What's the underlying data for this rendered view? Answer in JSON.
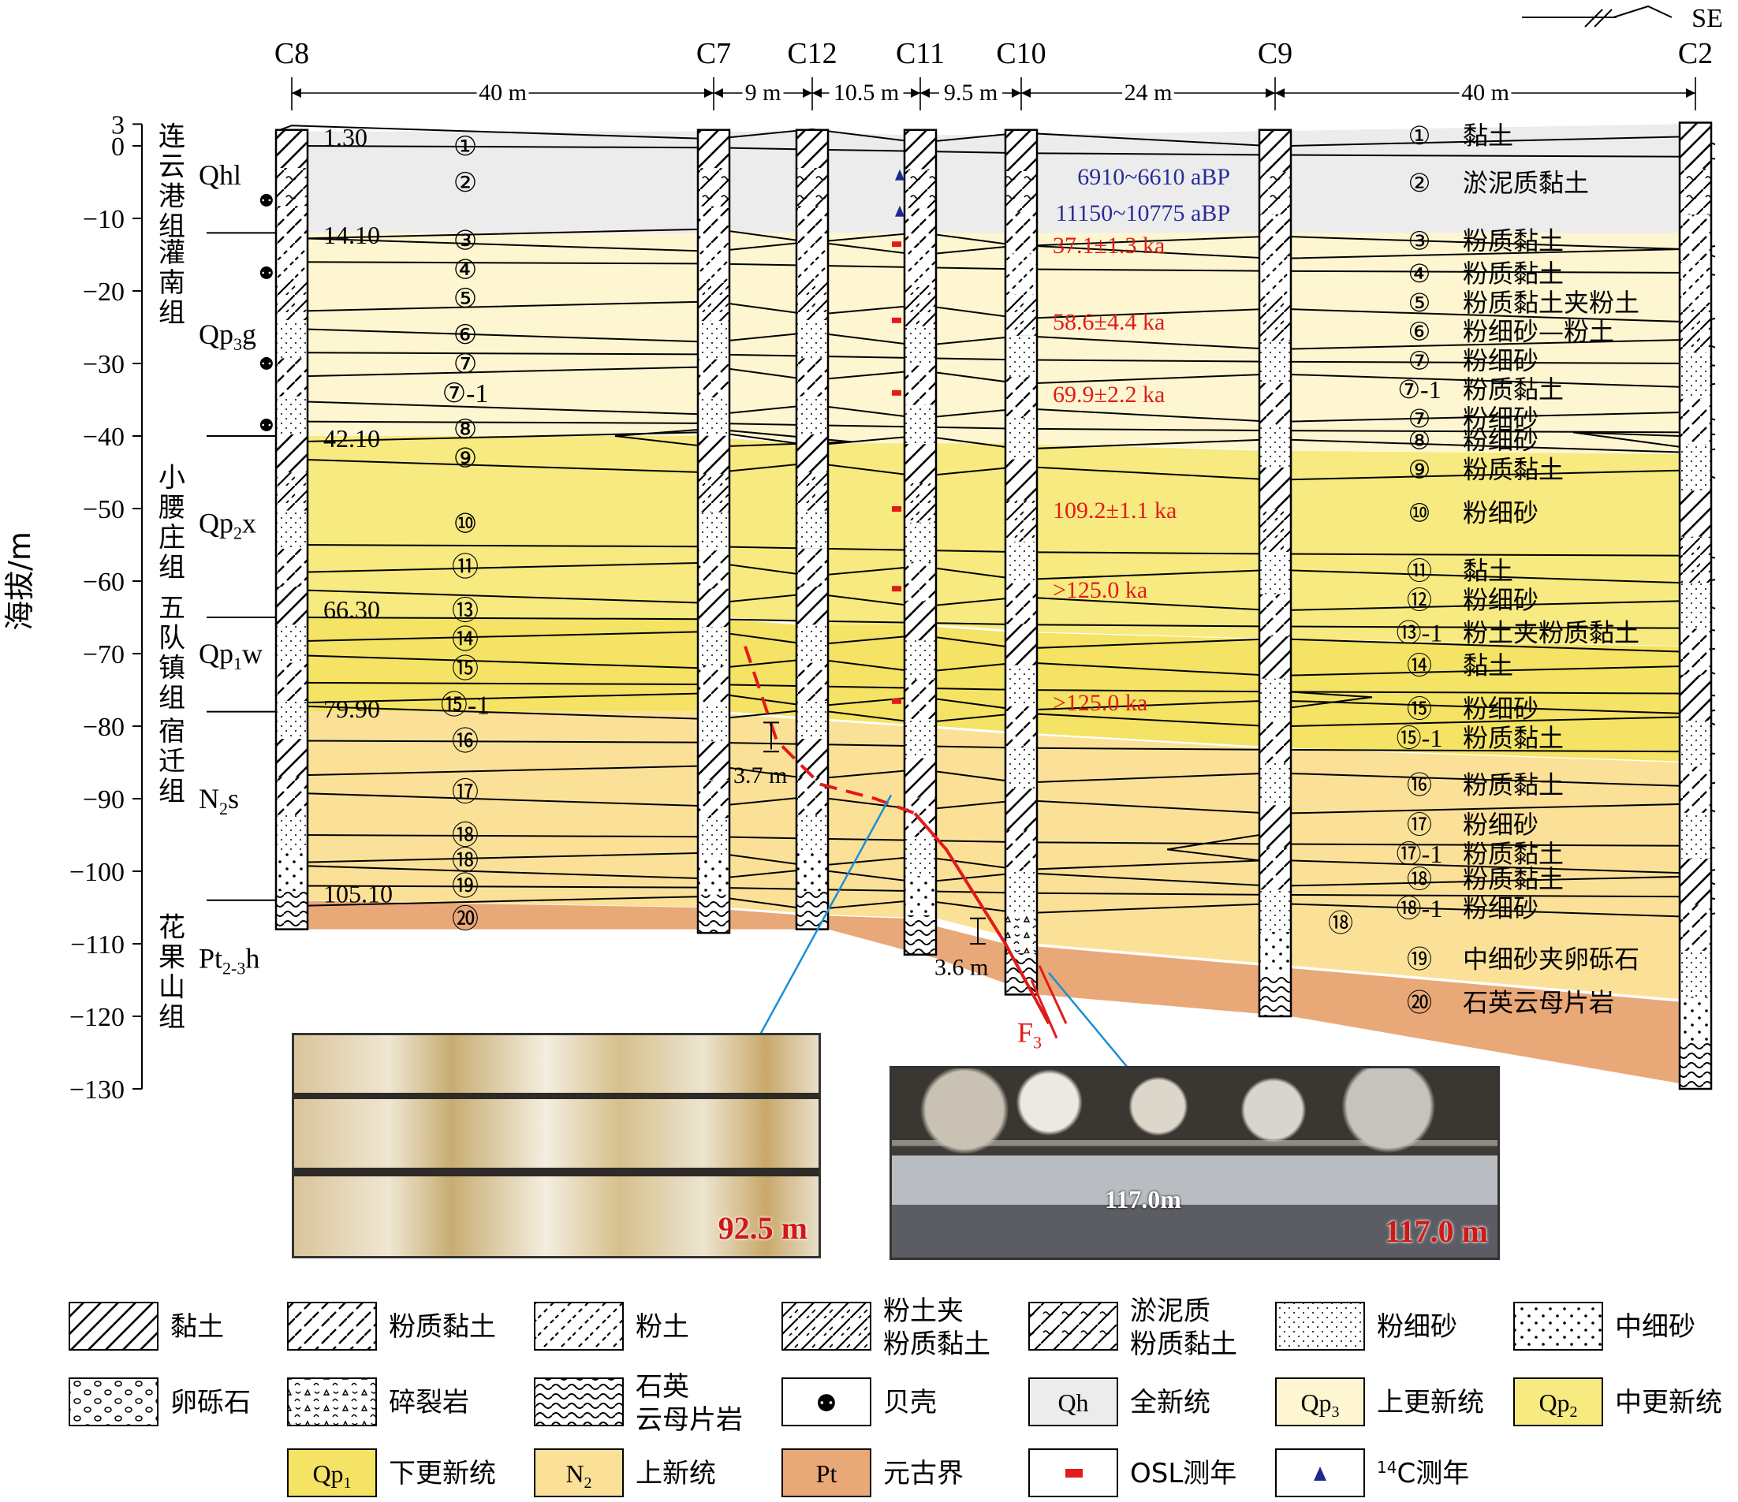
{
  "orientation": {
    "label": "SE"
  },
  "boreholes": [
    "C8",
    "C7",
    "C12",
    "C11",
    "C10",
    "C9",
    "C2"
  ],
  "spacings": [
    "40 m",
    "9 m",
    "10.5 m",
    "9.5 m",
    "24 m",
    "40 m"
  ],
  "yaxis": {
    "label": "海拔/m",
    "ticks": [
      3,
      0,
      -10,
      -20,
      -30,
      -40,
      -50,
      -60,
      -70,
      -80,
      -90,
      -100,
      -110,
      -120,
      -130
    ],
    "tick_labels": [
      "3",
      "0",
      "−10",
      "−20",
      "−30",
      "−40",
      "−50",
      "−60",
      "−70",
      "−80",
      "−90",
      "−100",
      "−110",
      "−120",
      "−130"
    ]
  },
  "formations": [
    {
      "name_lines": [
        "连",
        "云",
        "港",
        "组"
      ],
      "code": "Qhl",
      "age": "Qh"
    },
    {
      "name_lines": [
        "灌",
        "南",
        "组"
      ],
      "code": "Qp3g",
      "code_html_main": "Qp",
      "code_sub": "3",
      "code_tail": "g",
      "age": "Qp3"
    },
    {
      "name_lines": [
        "小",
        "腰",
        "庄",
        "组"
      ],
      "code": "Qp2x",
      "code_html_main": "Qp",
      "code_sub": "2",
      "code_tail": "x",
      "age": "Qp2"
    },
    {
      "name_lines": [
        "五",
        "队",
        "镇",
        "组"
      ],
      "code": "Qp1w",
      "code_html_main": "Qp",
      "code_sub": "1",
      "code_tail": "w",
      "age": "Qp1"
    },
    {
      "name_lines": [
        "宿",
        "迁",
        "组"
      ],
      "code": "N2s",
      "code_html_main": "N",
      "code_sub": "2",
      "code_tail": "s",
      "age": "N2"
    },
    {
      "name_lines": [
        "花",
        "果",
        "山",
        "组"
      ],
      "code": "Pt2-3h",
      "code_html_main": "Pt",
      "code_sub": "2-3",
      "code_tail": "h",
      "age": "Pt"
    }
  ],
  "boundary_depths": [
    "1.30",
    "14.10",
    "42.10",
    "66.30",
    "79.90",
    "105.10"
  ],
  "c8_layers": [
    "①",
    "②",
    "③",
    "④",
    "⑤",
    "⑥",
    "⑦",
    "⑦-1",
    "⑧",
    "⑨",
    "⑩",
    "⑪",
    "⑬",
    "⑭",
    "⑮",
    "⑮-1",
    "⑯",
    "⑰",
    "⑱",
    "⑱",
    "⑲",
    "⑳"
  ],
  "right_layers": [
    {
      "num": "①",
      "name": "黏土"
    },
    {
      "num": "②",
      "name": "淤泥质黏土"
    },
    {
      "num": "③",
      "name": "粉质黏土"
    },
    {
      "num": "④",
      "name": "粉质黏土"
    },
    {
      "num": "⑤",
      "name": "粉质黏土夹粉土"
    },
    {
      "num": "⑥",
      "name": "粉细砂—粉土"
    },
    {
      "num": "⑦",
      "name": "粉细砂"
    },
    {
      "num": "⑦-1",
      "name": "粉质黏土"
    },
    {
      "num": "⑦",
      "name": "粉细砂"
    },
    {
      "num": "⑧",
      "name": "粉细砂"
    },
    {
      "num": "⑨",
      "name": "粉质黏土"
    },
    {
      "num": "⑩",
      "name": "粉细砂"
    },
    {
      "num": "⑪",
      "name": "黏土"
    },
    {
      "num": "⑫",
      "name": "粉细砂"
    },
    {
      "num": "⑬-1",
      "name": "粉土夹粉质黏土"
    },
    {
      "num": "⑭",
      "name": "黏土"
    },
    {
      "num": "⑮",
      "name": "粉细砂"
    },
    {
      "num": "⑮-1",
      "name": "粉质黏土"
    },
    {
      "num": "⑯",
      "name": "粉质黏土"
    },
    {
      "num": "⑰",
      "name": "粉细砂"
    },
    {
      "num": "⑰-1",
      "name": "粉质黏土"
    },
    {
      "num": "⑱",
      "name": "粉质黏土"
    },
    {
      "num": "⑱-1",
      "name": "粉细砂"
    },
    {
      "num": "⑲",
      "name": "中细砂夹卵砾石"
    },
    {
      "num": "⑳",
      "name": "石英云母片岩"
    }
  ],
  "c9_layer": "⑱",
  "c14_dates": [
    {
      "label": "6910~6610 aBP",
      "depth": -4
    },
    {
      "label": "11150~10775 aBP",
      "depth": -9
    }
  ],
  "osl_dates": [
    {
      "label": "37.1±1.3 ka",
      "depth": -13.5
    },
    {
      "label": "58.6±4.4 ka",
      "depth": -24
    },
    {
      "label": "69.9±2.2 ka",
      "depth": -34
    },
    {
      "label": "109.2±1.1 ka",
      "depth": -50
    },
    {
      "label": ">125.0 ka",
      "depth": -61
    },
    {
      "label": ">125.0 ka",
      "depth": -76.5
    }
  ],
  "fault": {
    "name": "F",
    "sub": "3",
    "offsets": [
      "3.7 m",
      "3.6 m"
    ]
  },
  "photos": [
    {
      "label": "92.5 m"
    },
    {
      "label": "117.0 m",
      "inner_label": "117.0m"
    }
  ],
  "colors": {
    "Qh": "#ececec",
    "Qp3": "#fdf6d0",
    "Qp2": "#f7ea80",
    "Qp1": "#f4e364",
    "N2": "#fbe198",
    "Pt": "#e9a878",
    "fault": "#e11b1b",
    "arrow": "#1a8ed8",
    "osl": "#e11b1b",
    "c14": "#1c2a8f",
    "c14_text": "#2a2a9a"
  },
  "legend": [
    {
      "pattern": "clay",
      "label_lines": [
        "黏土"
      ]
    },
    {
      "pattern": "silty-clay",
      "label_lines": [
        "粉质黏土"
      ]
    },
    {
      "pattern": "silt",
      "label_lines": [
        "粉土"
      ]
    },
    {
      "pattern": "silt-with-silty-clay",
      "label_lines": [
        "粉土夹",
        "粉质黏土"
      ]
    },
    {
      "pattern": "mucky-silty-clay",
      "label_lines": [
        "淤泥质",
        "粉质黏土"
      ]
    },
    {
      "pattern": "fine-sand",
      "label_lines": [
        "粉细砂"
      ]
    },
    {
      "pattern": "medium-fine-sand",
      "label_lines": [
        "中细砂"
      ]
    },
    {
      "pattern": "gravel",
      "label_lines": [
        "卵砾石"
      ]
    },
    {
      "pattern": "cataclasite",
      "label_lines": [
        "碎裂岩"
      ]
    },
    {
      "pattern": "schist",
      "label_lines": [
        "石英",
        "云母片岩"
      ]
    },
    {
      "pattern": "shell",
      "label_lines": [
        "贝壳"
      ]
    },
    {
      "pattern": "Qh",
      "code": "Qh",
      "label_lines": [
        "全新统"
      ]
    },
    {
      "pattern": "Qp3",
      "code": "Qp",
      "sub": "3",
      "label_lines": [
        "上更新统"
      ]
    },
    {
      "pattern": "Qp2",
      "code": "Qp",
      "sub": "2",
      "label_lines": [
        "中更新统"
      ]
    },
    {
      "pattern": "Qp1",
      "code": "Qp",
      "sub": "1",
      "label_lines": [
        "下更新统"
      ]
    },
    {
      "pattern": "N2",
      "code": "N",
      "sub": "2",
      "label_lines": [
        "上新统"
      ]
    },
    {
      "pattern": "Pt",
      "code": "Pt",
      "label_lines": [
        "元古界"
      ]
    },
    {
      "pattern": "osl",
      "label_lines": [
        "OSL测年"
      ]
    },
    {
      "pattern": "c14",
      "sup": "14",
      "label_lines": [
        "C测年"
      ]
    }
  ]
}
